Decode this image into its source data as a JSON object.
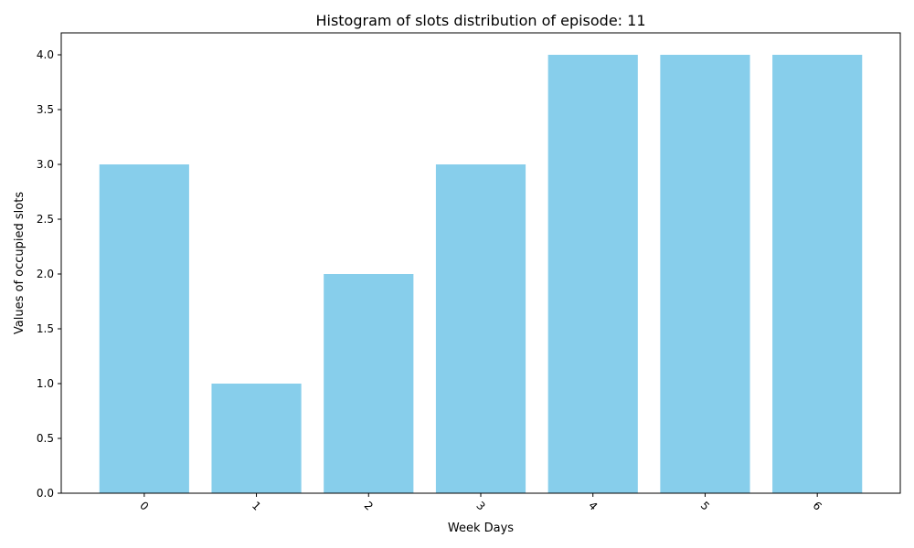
{
  "chart_data": {
    "type": "bar",
    "title": "Histogram of slots distribution of episode: 11",
    "xlabel": "Week Days",
    "ylabel": "Values of occupied slots",
    "categories": [
      "0",
      "1",
      "2",
      "3",
      "4",
      "5",
      "6"
    ],
    "values": [
      3,
      1,
      2,
      3,
      4,
      4,
      4
    ],
    "ylim": [
      0,
      4.2
    ],
    "yticks": [
      0.0,
      0.5,
      1.0,
      1.5,
      2.0,
      2.5,
      3.0,
      3.5,
      4.0
    ],
    "ytick_labels": [
      "0.0",
      "0.5",
      "1.0",
      "1.5",
      "2.0",
      "2.5",
      "3.0",
      "3.5",
      "4.0"
    ],
    "x_tick_rotation_deg": 45,
    "grid": false,
    "bar_color": "#87CEEB",
    "axis_color": "#000000"
  }
}
